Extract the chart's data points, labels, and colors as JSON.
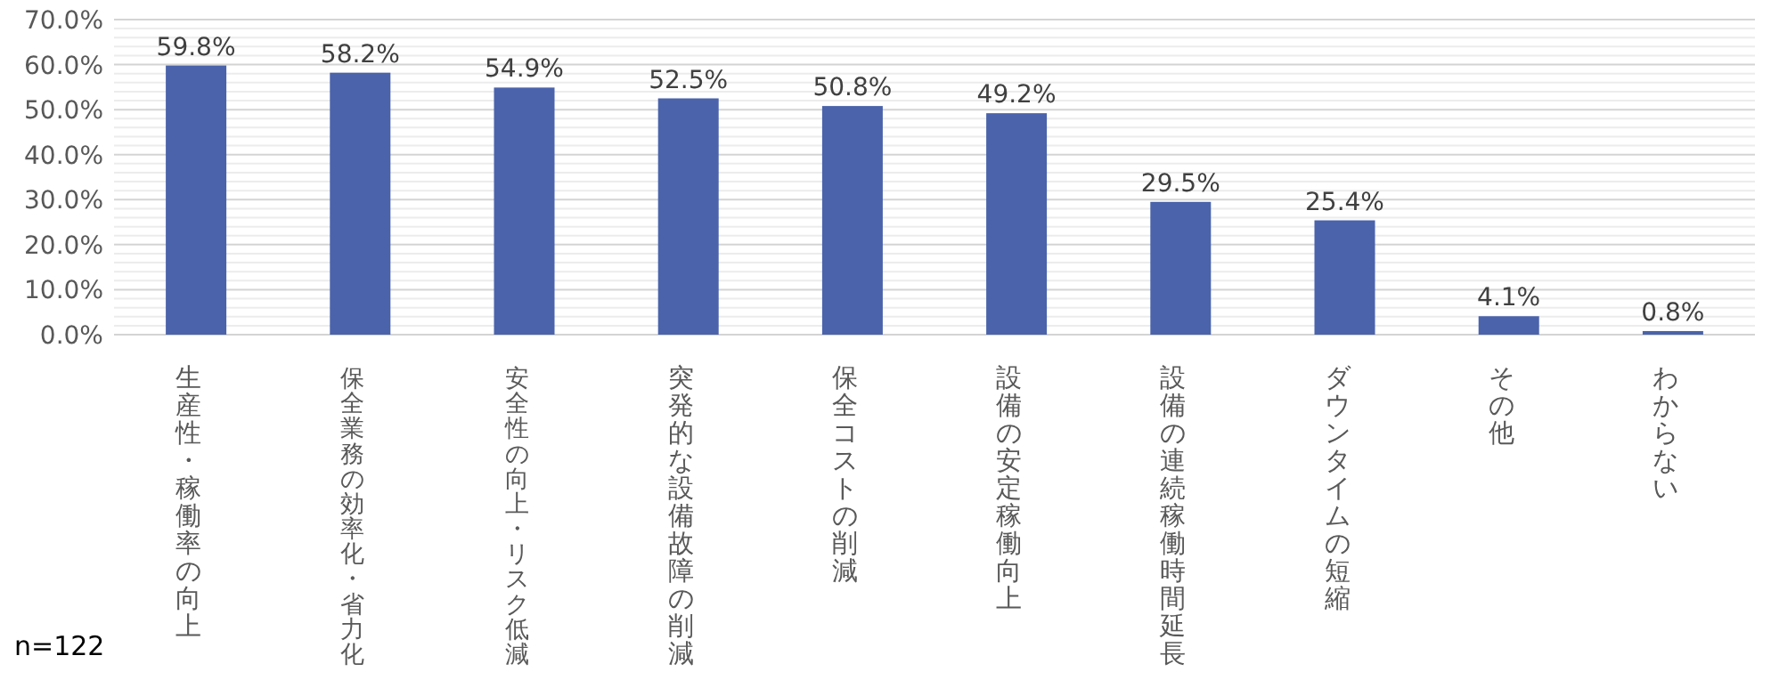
{
  "chart_data": {
    "type": "bar",
    "categories": [
      "生産性・稼働率の向上",
      "保全業務の効率化・省力化",
      "安全性の向上・リスク低減",
      "突発的な設備故障の削減",
      "保全コストの削減",
      "設備の安定稼働向上",
      "設備の連続稼働時間延長",
      "ダウンタイムの短縮",
      "その他",
      "わからない"
    ],
    "series": [
      {
        "color": "#4a63ab",
        "values": [
          59.8,
          58.2,
          54.9,
          52.5,
          50.8,
          49.2,
          29.5,
          25.4,
          4.1,
          0.8
        ]
      }
    ],
    "ylim": [
      0,
      70
    ],
    "yticks": [
      {
        "value": 0,
        "label": "0.0%"
      },
      {
        "value": 10,
        "label": "10.0%"
      },
      {
        "value": 20,
        "label": "20.0%"
      },
      {
        "value": 30,
        "label": "30.0%"
      },
      {
        "value": 40,
        "label": "40.0%"
      },
      {
        "value": 50,
        "label": "50.0%"
      },
      {
        "value": 60,
        "label": "60.0%"
      },
      {
        "value": 70,
        "label": "70.0%"
      }
    ],
    "value_labels": [
      "59.8%",
      "58.2%",
      "54.9%",
      "52.5%",
      "50.8%",
      "49.2%",
      "29.5%",
      "25.4%",
      "4.1%",
      "0.8%"
    ],
    "grid": "y",
    "annotations": [
      "n=122"
    ]
  }
}
